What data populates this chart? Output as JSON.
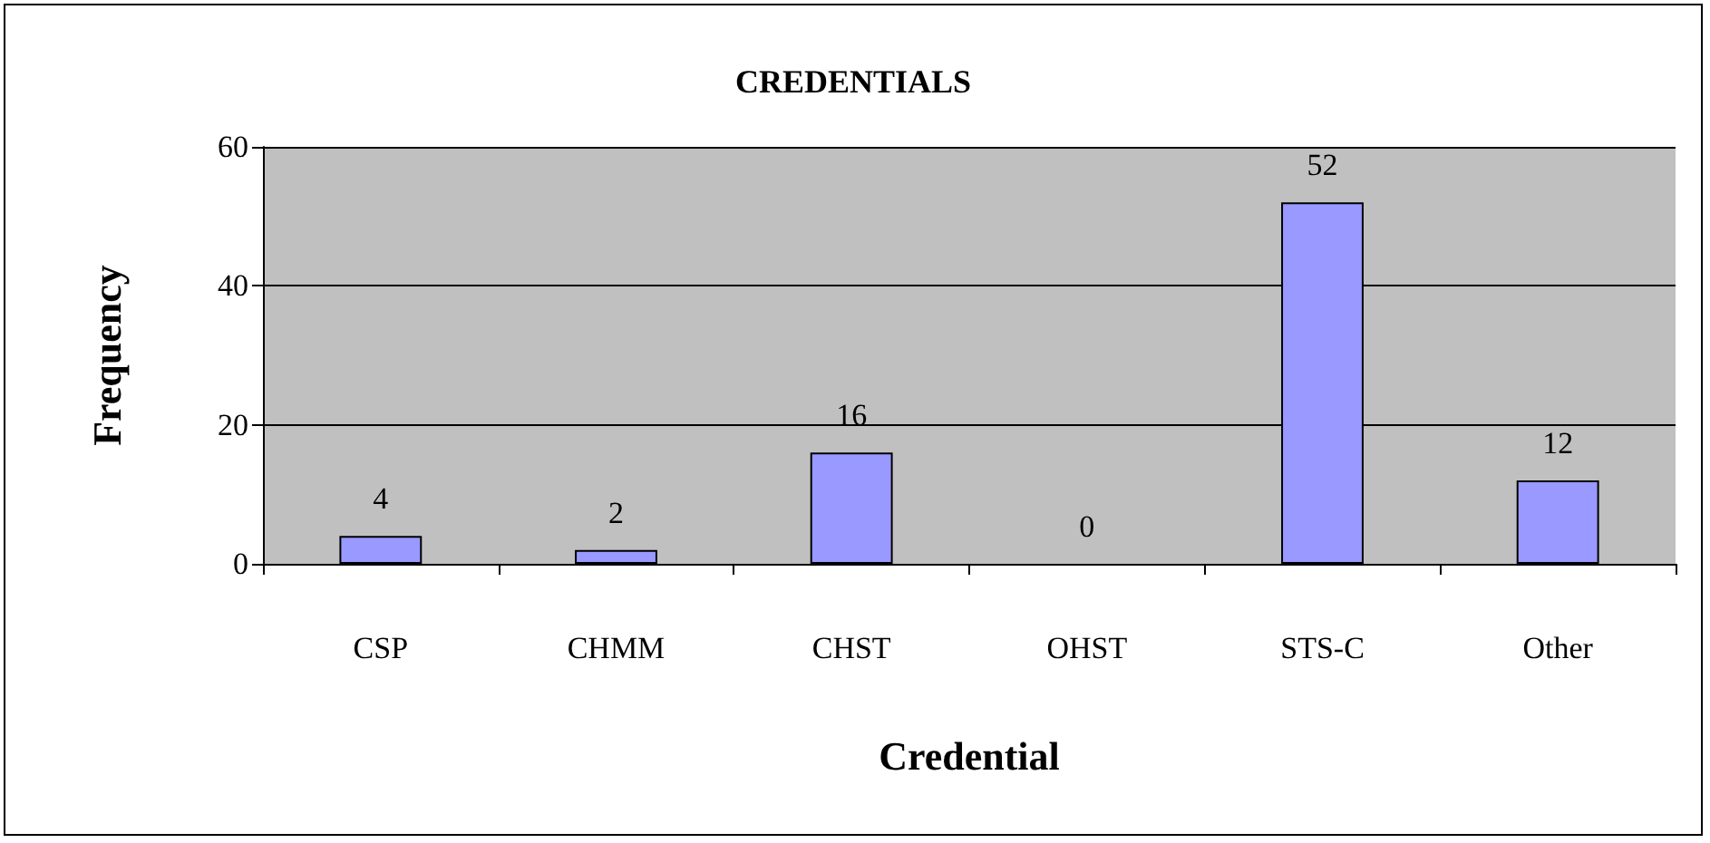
{
  "chart_data": {
    "type": "bar",
    "title": "CREDENTIALS",
    "xlabel": "Credential",
    "ylabel": "Frequency",
    "categories": [
      "CSP",
      "CHMM",
      "CHST",
      "OHST",
      "STS-C",
      "Other"
    ],
    "values": [
      4,
      2,
      16,
      0,
      52,
      12
    ],
    "color": "#9999ff",
    "ylim": [
      0,
      60
    ],
    "yticks": [
      0,
      20,
      40,
      60
    ],
    "grid": "y",
    "data_labels": true
  }
}
